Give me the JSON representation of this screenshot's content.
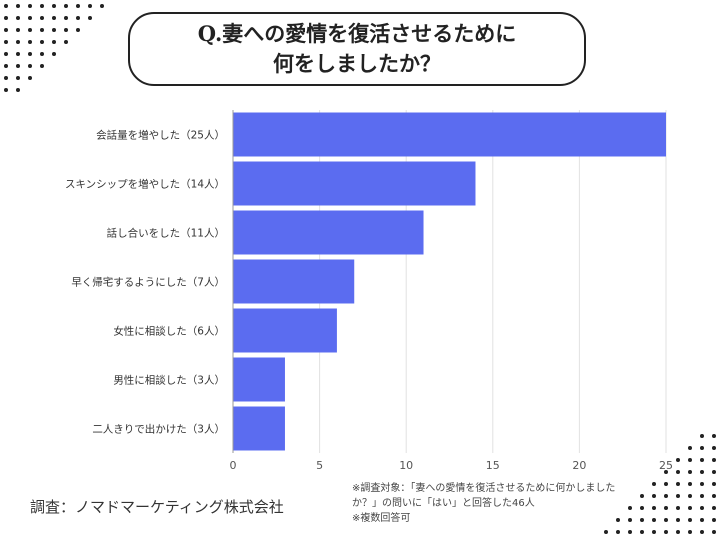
{
  "title": {
    "line1": "Q.妻への愛情を復活させるために",
    "line2": "何をしましたか？"
  },
  "chart_data": {
    "type": "bar",
    "orientation": "horizontal",
    "categories": [
      "会話量を増やした（25人）",
      "スキンシップを増やした（14人）",
      "話し合いをした（11人）",
      "早く帰宅するようにした（7人）",
      "女性に相談した（6人）",
      "男性に相談した（3人）",
      "二人きりで出かけた（3人）"
    ],
    "values": [
      25,
      14,
      11,
      7,
      6,
      3,
      3
    ],
    "xlim": [
      0,
      25
    ],
    "xticks": [
      "0",
      "5",
      "10",
      "15",
      "20",
      "25"
    ],
    "grid": true,
    "bar_color": "#5b6cf0"
  },
  "credit": "調査：ノマドマーケティング株式会社",
  "note": {
    "line1": "※調査対象：「妻への愛情を復活させるために何かしました",
    "line2": "か？」の問いに「はい」と回答した46人",
    "line3": "※複数回答可"
  }
}
